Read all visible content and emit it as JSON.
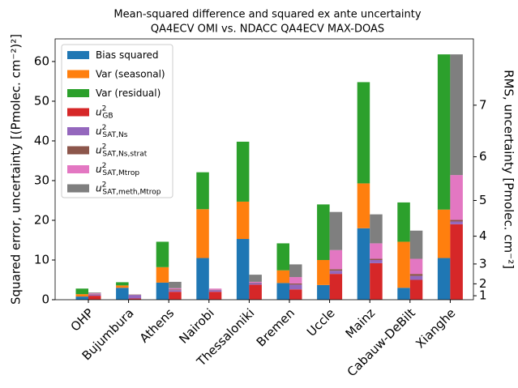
{
  "chart_data": {
    "type": "stacked_bar",
    "title": "Mean-squared difference and squared ex ante uncertainty",
    "subtitle": "QA4ECV OMI vs. NDACC QA4ECV MAX-DOAS",
    "y_label": "Squared error, uncertainty [(Pmolec. cm⁻²)²]",
    "y2_label": "RMS, uncertainty [Pmolec. cm⁻²]",
    "y2scale": "square",
    "categories": [
      "OHP",
      "Bujumbura",
      "Athens",
      "Nairobi",
      "Thessaloniki",
      "Bremen",
      "Uccle",
      "Mainz",
      "Cabauw-DeBilt",
      "Xianghe"
    ],
    "ylim": [
      0,
      65.7
    ],
    "yticks": [
      0,
      10,
      20,
      30,
      40,
      50,
      60
    ],
    "y2lim": [
      0,
      8.1
    ],
    "y2ticks": [
      1,
      2,
      3,
      4,
      5,
      6,
      7
    ],
    "legend": "upper left",
    "series": [
      {
        "name": "Bias squared",
        "stack": 0,
        "color": "#1f77b4",
        "values": [
          0.8,
          3.0,
          4.3,
          10.5,
          15.3,
          4.2,
          3.7,
          18.0,
          3.0,
          10.5
        ]
      },
      {
        "name": "Var (seasonal)",
        "stack": 0,
        "color": "#ff7f0e",
        "values": [
          0.6,
          0.6,
          3.9,
          12.3,
          9.4,
          3.2,
          6.3,
          11.3,
          11.6,
          12.2
        ]
      },
      {
        "name": "Var (residual)",
        "stack": 0,
        "color": "#2ca02c",
        "values": [
          1.4,
          0.8,
          6.4,
          9.3,
          15.1,
          6.8,
          14.0,
          25.5,
          9.9,
          39.1
        ]
      },
      {
        "name": "u",
        "sup": "2",
        "sub": "GB",
        "stack": 1,
        "color": "#d62728",
        "values": [
          1.0,
          0.3,
          2.0,
          2.0,
          3.8,
          2.6,
          6.5,
          9.2,
          5.0,
          19.0
        ]
      },
      {
        "name": "u",
        "sup": "2",
        "sub": "SAT,Ns",
        "stack": 1,
        "color": "#9467bd",
        "values": [
          0.3,
          0.9,
          0.4,
          0.4,
          0.4,
          1.2,
          0.8,
          0.8,
          1.0,
          0.7
        ]
      },
      {
        "name": "u",
        "sup": "2",
        "sub": "SAT,Ns,strat",
        "stack": 1,
        "color": "#8c564b",
        "values": [
          0.1,
          0.1,
          0.2,
          0.1,
          0.1,
          0.3,
          0.4,
          0.3,
          0.5,
          0.4
        ]
      },
      {
        "name": "u",
        "sup": "2",
        "sub": "SAT,Mtrop",
        "stack": 1,
        "color": "#e377c2",
        "values": [
          0.2,
          0.0,
          0.3,
          0.3,
          0.2,
          1.6,
          4.8,
          3.9,
          3.8,
          11.3
        ]
      },
      {
        "name": "u",
        "sup": "2",
        "sub": "SAT,meth,Mtrop",
        "stack": 1,
        "color": "#7f7f7f",
        "values": [
          0.2,
          0.0,
          1.6,
          0.0,
          1.8,
          3.2,
          9.6,
          7.3,
          7.1,
          30.4
        ]
      }
    ]
  }
}
